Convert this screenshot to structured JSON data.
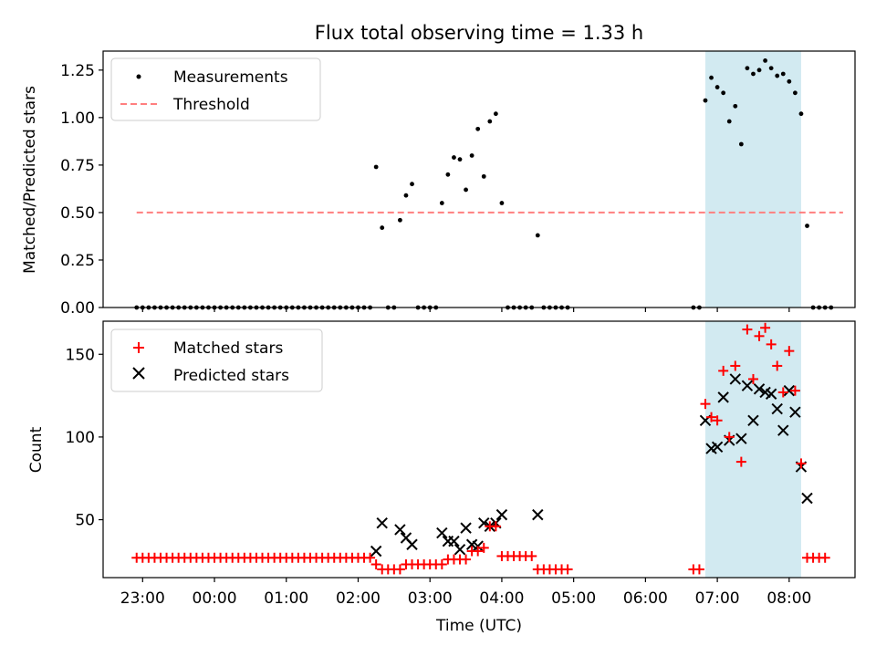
{
  "chart_data": [
    {
      "type": "scatter",
      "title": "Flux total observing time = 1.33 h",
      "xlabel": "",
      "ylabel": "Matched/Predicted stars",
      "xlim": [
        "22:27",
        "08:55"
      ],
      "ylim": [
        0,
        1.35
      ],
      "y_ticks": [
        0.0,
        0.25,
        0.5,
        0.75,
        1.0,
        1.25
      ],
      "y_tick_labels": [
        "0.00",
        "0.25",
        "0.50",
        "0.75",
        "1.00",
        "1.25"
      ],
      "legend_position": "top-left",
      "grid": false,
      "shaded_region": {
        "start": "06:50",
        "end": "08:10",
        "color": "#add8e6"
      },
      "series": [
        {
          "name": "Measurements",
          "marker": "dot",
          "color": "#000000",
          "points": [
            [
              "22:55",
              0
            ],
            [
              "23:00",
              0
            ],
            [
              "23:05",
              0
            ],
            [
              "23:10",
              0
            ],
            [
              "23:15",
              0
            ],
            [
              "23:20",
              0
            ],
            [
              "23:25",
              0
            ],
            [
              "23:30",
              0
            ],
            [
              "23:35",
              0
            ],
            [
              "23:40",
              0
            ],
            [
              "23:45",
              0
            ],
            [
              "23:50",
              0
            ],
            [
              "23:55",
              0
            ],
            [
              "00:00",
              0
            ],
            [
              "00:05",
              0
            ],
            [
              "00:10",
              0
            ],
            [
              "00:15",
              0
            ],
            [
              "00:20",
              0
            ],
            [
              "00:25",
              0
            ],
            [
              "00:30",
              0
            ],
            [
              "00:35",
              0
            ],
            [
              "00:40",
              0
            ],
            [
              "00:45",
              0
            ],
            [
              "00:50",
              0
            ],
            [
              "00:55",
              0
            ],
            [
              "01:00",
              0
            ],
            [
              "01:05",
              0
            ],
            [
              "01:10",
              0
            ],
            [
              "01:15",
              0
            ],
            [
              "01:20",
              0
            ],
            [
              "01:25",
              0
            ],
            [
              "01:30",
              0
            ],
            [
              "01:35",
              0
            ],
            [
              "01:40",
              0
            ],
            [
              "01:45",
              0
            ],
            [
              "01:50",
              0
            ],
            [
              "01:55",
              0
            ],
            [
              "02:00",
              0
            ],
            [
              "02:05",
              0
            ],
            [
              "02:10",
              0
            ],
            [
              "02:15",
              0.74
            ],
            [
              "02:20",
              0.42
            ],
            [
              "02:25",
              0
            ],
            [
              "02:30",
              0
            ],
            [
              "02:35",
              0.46
            ],
            [
              "02:40",
              0.59
            ],
            [
              "02:45",
              0.65
            ],
            [
              "02:50",
              0
            ],
            [
              "02:55",
              0
            ],
            [
              "03:00",
              0
            ],
            [
              "03:05",
              0
            ],
            [
              "03:10",
              0.55
            ],
            [
              "03:15",
              0.7
            ],
            [
              "03:20",
              0.79
            ],
            [
              "03:25",
              0.78
            ],
            [
              "03:30",
              0.62
            ],
            [
              "03:35",
              0.8
            ],
            [
              "03:40",
              0.94
            ],
            [
              "03:45",
              0.69
            ],
            [
              "03:50",
              0.98
            ],
            [
              "03:55",
              1.02
            ],
            [
              "04:00",
              0.55
            ],
            [
              "04:05",
              0
            ],
            [
              "04:10",
              0
            ],
            [
              "04:15",
              0
            ],
            [
              "04:20",
              0
            ],
            [
              "04:25",
              0
            ],
            [
              "04:30",
              0.38
            ],
            [
              "04:35",
              0
            ],
            [
              "04:40",
              0
            ],
            [
              "04:45",
              0
            ],
            [
              "04:50",
              0
            ],
            [
              "04:55",
              0
            ],
            [
              "06:40",
              0
            ],
            [
              "06:45",
              0
            ],
            [
              "06:50",
              1.09
            ],
            [
              "06:55",
              1.21
            ],
            [
              "07:00",
              1.16
            ],
            [
              "07:05",
              1.13
            ],
            [
              "07:10",
              0.98
            ],
            [
              "07:15",
              1.06
            ],
            [
              "07:20",
              0.86
            ],
            [
              "07:25",
              1.26
            ],
            [
              "07:30",
              1.23
            ],
            [
              "07:35",
              1.25
            ],
            [
              "07:40",
              1.3
            ],
            [
              "07:45",
              1.26
            ],
            [
              "07:50",
              1.22
            ],
            [
              "07:55",
              1.23
            ],
            [
              "08:00",
              1.19
            ],
            [
              "08:05",
              1.13
            ],
            [
              "08:10",
              1.02
            ],
            [
              "08:15",
              0.43
            ],
            [
              "08:20",
              0
            ],
            [
              "08:25",
              0
            ],
            [
              "08:30",
              0
            ],
            [
              "08:35",
              0
            ]
          ]
        },
        {
          "name": "Threshold",
          "type": "line",
          "style": "dashed",
          "color": "#ff7f7f",
          "x": [
            "22:55",
            "08:45"
          ],
          "y": [
            0.5,
            0.5
          ]
        }
      ]
    },
    {
      "type": "scatter",
      "title": "",
      "xlabel": "Time (UTC)",
      "ylabel": "Count",
      "xlim": [
        "22:27",
        "08:55"
      ],
      "ylim": [
        15,
        170
      ],
      "y_ticks": [
        50,
        100,
        150
      ],
      "y_tick_labels": [
        "50",
        "100",
        "150"
      ],
      "x_ticks": [
        "23:00",
        "00:00",
        "01:00",
        "02:00",
        "03:00",
        "04:00",
        "05:00",
        "06:00",
        "07:00",
        "08:00"
      ],
      "x_tick_labels": [
        "23:00",
        "00:00",
        "01:00",
        "02:00",
        "03:00",
        "04:00",
        "05:00",
        "06:00",
        "07:00",
        "08:00"
      ],
      "legend_position": "top-left",
      "grid": false,
      "shaded_region": {
        "start": "06:50",
        "end": "08:10",
        "color": "#add8e6"
      },
      "series": [
        {
          "name": "Matched stars",
          "marker": "plus",
          "color": "#ff0000",
          "points": [
            [
              "22:55",
              27
            ],
            [
              "23:00",
              27
            ],
            [
              "23:05",
              27
            ],
            [
              "23:10",
              27
            ],
            [
              "23:15",
              27
            ],
            [
              "23:20",
              27
            ],
            [
              "23:25",
              27
            ],
            [
              "23:30",
              27
            ],
            [
              "23:35",
              27
            ],
            [
              "23:40",
              27
            ],
            [
              "23:45",
              27
            ],
            [
              "23:50",
              27
            ],
            [
              "23:55",
              27
            ],
            [
              "00:00",
              27
            ],
            [
              "00:05",
              27
            ],
            [
              "00:10",
              27
            ],
            [
              "00:15",
              27
            ],
            [
              "00:20",
              27
            ],
            [
              "00:25",
              27
            ],
            [
              "00:30",
              27
            ],
            [
              "00:35",
              27
            ],
            [
              "00:40",
              27
            ],
            [
              "00:45",
              27
            ],
            [
              "00:50",
              27
            ],
            [
              "00:55",
              27
            ],
            [
              "01:00",
              27
            ],
            [
              "01:05",
              27
            ],
            [
              "01:10",
              27
            ],
            [
              "01:15",
              27
            ],
            [
              "01:20",
              27
            ],
            [
              "01:25",
              27
            ],
            [
              "01:30",
              27
            ],
            [
              "01:35",
              27
            ],
            [
              "01:40",
              27
            ],
            [
              "01:45",
              27
            ],
            [
              "01:50",
              27
            ],
            [
              "01:55",
              27
            ],
            [
              "02:00",
              27
            ],
            [
              "02:05",
              27
            ],
            [
              "02:10",
              27
            ],
            [
              "02:15",
              23
            ],
            [
              "02:20",
              20
            ],
            [
              "02:25",
              20
            ],
            [
              "02:30",
              20
            ],
            [
              "02:35",
              20
            ],
            [
              "02:40",
              23
            ],
            [
              "02:45",
              23
            ],
            [
              "02:50",
              23
            ],
            [
              "02:55",
              23
            ],
            [
              "03:00",
              23
            ],
            [
              "03:05",
              23
            ],
            [
              "03:10",
              23
            ],
            [
              "03:15",
              26
            ],
            [
              "03:20",
              26
            ],
            [
              "03:25",
              26
            ],
            [
              "03:30",
              26
            ],
            [
              "03:35",
              31
            ],
            [
              "03:40",
              31
            ],
            [
              "03:45",
              33
            ],
            [
              "03:50",
              46
            ],
            [
              "03:55",
              46
            ],
            [
              "04:00",
              28
            ],
            [
              "04:05",
              28
            ],
            [
              "04:10",
              28
            ],
            [
              "04:15",
              28
            ],
            [
              "04:20",
              28
            ],
            [
              "04:25",
              28
            ],
            [
              "04:30",
              20
            ],
            [
              "04:35",
              20
            ],
            [
              "04:40",
              20
            ],
            [
              "04:45",
              20
            ],
            [
              "04:50",
              20
            ],
            [
              "04:55",
              20
            ],
            [
              "06:40",
              20
            ],
            [
              "06:45",
              20
            ],
            [
              "06:50",
              120
            ],
            [
              "06:55",
              112
            ],
            [
              "07:00",
              110
            ],
            [
              "07:05",
              140
            ],
            [
              "07:10",
              100
            ],
            [
              "07:15",
              143
            ],
            [
              "07:20",
              85
            ],
            [
              "07:25",
              165
            ],
            [
              "07:30",
              135
            ],
            [
              "07:35",
              161
            ],
            [
              "07:40",
              166
            ],
            [
              "07:45",
              156
            ],
            [
              "07:50",
              143
            ],
            [
              "07:55",
              127
            ],
            [
              "08:00",
              152
            ],
            [
              "08:05",
              128
            ],
            [
              "08:10",
              84
            ],
            [
              "08:15",
              27
            ],
            [
              "08:20",
              27
            ],
            [
              "08:25",
              27
            ],
            [
              "08:30",
              27
            ]
          ]
        },
        {
          "name": "Predicted stars",
          "marker": "x",
          "color": "#000000",
          "points": [
            [
              "02:15",
              31
            ],
            [
              "02:20",
              48
            ],
            [
              "02:35",
              44
            ],
            [
              "02:40",
              39
            ],
            [
              "02:45",
              35
            ],
            [
              "03:10",
              42
            ],
            [
              "03:15",
              37
            ],
            [
              "03:20",
              37
            ],
            [
              "03:25",
              32
            ],
            [
              "03:30",
              45
            ],
            [
              "03:35",
              35
            ],
            [
              "03:40",
              34
            ],
            [
              "03:45",
              48
            ],
            [
              "03:50",
              46
            ],
            [
              "03:55",
              48
            ],
            [
              "04:00",
              53
            ],
            [
              "04:30",
              53
            ],
            [
              "06:50",
              110
            ],
            [
              "06:55",
              93
            ],
            [
              "07:00",
              94
            ],
            [
              "07:05",
              124
            ],
            [
              "07:10",
              98
            ],
            [
              "07:15",
              135
            ],
            [
              "07:20",
              99
            ],
            [
              "07:25",
              131
            ],
            [
              "07:30",
              110
            ],
            [
              "07:35",
              129
            ],
            [
              "07:40",
              127
            ],
            [
              "07:45",
              126
            ],
            [
              "07:50",
              117
            ],
            [
              "07:55",
              104
            ],
            [
              "08:00",
              128
            ],
            [
              "08:05",
              115
            ],
            [
              "08:10",
              82
            ],
            [
              "08:15",
              63
            ]
          ]
        }
      ]
    }
  ]
}
